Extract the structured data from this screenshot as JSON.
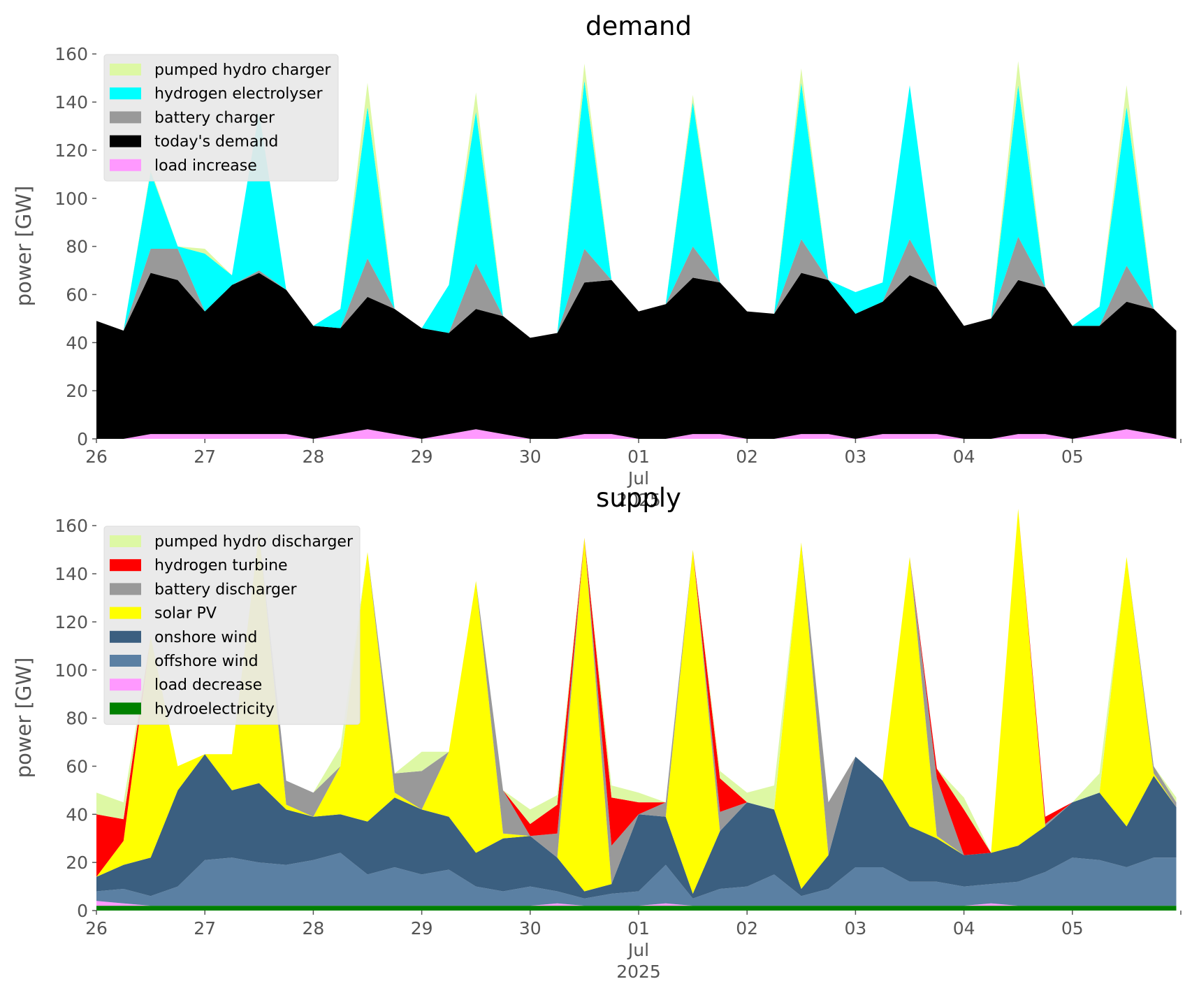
{
  "chart_data": [
    {
      "type": "area",
      "stacked": true,
      "title": "demand",
      "ylabel": "power [GW]",
      "xlabel": "",
      "ylim": [
        0,
        165
      ],
      "yticks": [
        0,
        20,
        40,
        60,
        80,
        100,
        120,
        140,
        160
      ],
      "xlim_days": [
        0,
        10
      ],
      "xticks": [
        "26",
        "27",
        "28",
        "29",
        "30",
        "01",
        "02",
        "03",
        "04",
        "05"
      ],
      "xtick_sub": {
        "tick": "01",
        "lines": [
          "Jul",
          "2025"
        ]
      },
      "grid": false,
      "legend_position": "top-left",
      "x": [
        "06-26 00:00",
        "06-26 06:00",
        "06-26 12:00",
        "06-26 18:00",
        "06-27 00:00",
        "06-27 06:00",
        "06-27 12:00",
        "06-27 18:00",
        "06-28 00:00",
        "06-28 06:00",
        "06-28 12:00",
        "06-28 18:00",
        "06-29 00:00",
        "06-29 06:00",
        "06-29 12:00",
        "06-29 18:00",
        "06-30 00:00",
        "06-30 06:00",
        "06-30 12:00",
        "06-30 18:00",
        "07-01 00:00",
        "07-01 06:00",
        "07-01 12:00",
        "07-01 18:00",
        "07-02 00:00",
        "07-02 06:00",
        "07-02 12:00",
        "07-02 18:00",
        "07-03 00:00",
        "07-03 06:00",
        "07-03 12:00",
        "07-03 18:00",
        "07-04 00:00",
        "07-04 06:00",
        "07-04 12:00",
        "07-04 18:00",
        "07-05 00:00",
        "07-05 06:00",
        "07-05 12:00",
        "07-05 18:00",
        "07-05 23:00"
      ],
      "series": [
        {
          "name": "load increase",
          "color": "#ff99ff",
          "values": [
            0,
            0,
            2,
            2,
            2,
            2,
            2,
            2,
            0,
            2,
            4,
            2,
            0,
            2,
            4,
            2,
            0,
            0,
            2,
            2,
            0,
            0,
            2,
            2,
            0,
            0,
            2,
            2,
            0,
            2,
            2,
            2,
            0,
            0,
            2,
            2,
            0,
            2,
            4,
            2,
            0
          ]
        },
        {
          "name": "today's demand",
          "color": "#000000",
          "values": [
            49,
            45,
            67,
            64,
            51,
            62,
            67,
            60,
            47,
            44,
            55,
            52,
            46,
            42,
            50,
            49,
            42,
            44,
            63,
            64,
            53,
            56,
            65,
            63,
            53,
            52,
            67,
            64,
            52,
            55,
            66,
            61,
            47,
            50,
            64,
            61,
            47,
            45,
            53,
            52,
            45
          ]
        },
        {
          "name": "battery charger",
          "color": "#999999",
          "values": [
            0,
            0,
            10,
            13,
            0,
            0,
            1,
            0,
            0,
            0,
            16,
            0,
            0,
            0,
            19,
            0,
            0,
            0,
            14,
            0,
            0,
            0,
            13,
            0,
            0,
            0,
            14,
            0,
            0,
            0,
            15,
            0,
            0,
            0,
            18,
            0,
            0,
            0,
            15,
            0,
            0
          ]
        },
        {
          "name": "hydrogen electrolyser",
          "color": "#00ffff",
          "values": [
            0,
            0,
            32,
            1,
            24,
            4,
            66,
            0,
            0,
            8,
            63,
            0,
            0,
            20,
            63,
            0,
            0,
            0,
            70,
            0,
            0,
            0,
            60,
            0,
            0,
            0,
            65,
            0,
            9,
            8,
            64,
            0,
            0,
            0,
            63,
            0,
            0,
            8,
            66,
            0,
            0
          ]
        },
        {
          "name": "pumped hydro charger",
          "color": "#ddf8a4",
          "values": [
            0,
            0,
            1,
            0,
            2,
            0,
            0,
            0,
            0,
            0,
            10,
            0,
            0,
            0,
            8,
            0,
            0,
            0,
            7,
            0,
            0,
            0,
            3,
            0,
            0,
            0,
            6,
            0,
            0,
            0,
            0,
            0,
            0,
            0,
            10,
            0,
            0,
            0,
            9,
            0,
            0
          ]
        }
      ],
      "legend_order": [
        "pumped hydro charger",
        "hydrogen electrolyser",
        "battery charger",
        "today's demand",
        "load increase"
      ]
    },
    {
      "type": "area",
      "stacked": true,
      "title": "supply",
      "ylabel": "power [GW]",
      "xlabel": "",
      "ylim": [
        0,
        165
      ],
      "yticks": [
        0,
        20,
        40,
        60,
        80,
        100,
        120,
        140,
        160
      ],
      "xlim_days": [
        0,
        10
      ],
      "xticks": [
        "26",
        "27",
        "28",
        "29",
        "30",
        "01",
        "02",
        "03",
        "04",
        "05"
      ],
      "xtick_sub": {
        "tick": "01",
        "lines": [
          "Jul",
          "2025"
        ]
      },
      "grid": false,
      "legend_position": "top-left",
      "x": [
        "06-26 00:00",
        "06-26 06:00",
        "06-26 12:00",
        "06-26 18:00",
        "06-27 00:00",
        "06-27 06:00",
        "06-27 12:00",
        "06-27 18:00",
        "06-28 00:00",
        "06-28 06:00",
        "06-28 12:00",
        "06-28 18:00",
        "06-29 00:00",
        "06-29 06:00",
        "06-29 12:00",
        "06-29 18:00",
        "06-30 00:00",
        "06-30 06:00",
        "06-30 12:00",
        "06-30 18:00",
        "07-01 00:00",
        "07-01 06:00",
        "07-01 12:00",
        "07-01 18:00",
        "07-02 00:00",
        "07-02 06:00",
        "07-02 12:00",
        "07-02 18:00",
        "07-03 00:00",
        "07-03 06:00",
        "07-03 12:00",
        "07-03 18:00",
        "07-04 00:00",
        "07-04 06:00",
        "07-04 12:00",
        "07-04 18:00",
        "07-05 00:00",
        "07-05 06:00",
        "07-05 12:00",
        "07-05 18:00",
        "07-05 23:00"
      ],
      "series": [
        {
          "name": "hydroelectricity",
          "color": "#008000",
          "values": [
            2,
            2,
            2,
            2,
            2,
            2,
            2,
            2,
            2,
            2,
            2,
            2,
            2,
            2,
            2,
            2,
            2,
            2,
            2,
            2,
            2,
            2,
            2,
            2,
            2,
            2,
            2,
            2,
            2,
            2,
            2,
            2,
            2,
            2,
            2,
            2,
            2,
            2,
            2,
            2,
            2
          ]
        },
        {
          "name": "load decrease",
          "color": "#ff99ff",
          "values": [
            2,
            1,
            0,
            0,
            0,
            0,
            0,
            0,
            0,
            0,
            0,
            0,
            0,
            0,
            0,
            0,
            0,
            1,
            0,
            0,
            0,
            1,
            0,
            0,
            0,
            0,
            0,
            0,
            0,
            0,
            0,
            0,
            0,
            1,
            0,
            0,
            0,
            0,
            0,
            0,
            0
          ]
        },
        {
          "name": "offshore wind",
          "color": "#5b80a3",
          "values": [
            4,
            6,
            4,
            8,
            19,
            20,
            18,
            17,
            19,
            22,
            13,
            16,
            13,
            15,
            8,
            6,
            8,
            5,
            3,
            5,
            6,
            16,
            3,
            7,
            8,
            13,
            4,
            7,
            16,
            16,
            10,
            10,
            8,
            8,
            10,
            14,
            20,
            19,
            16,
            20,
            20
          ]
        },
        {
          "name": "onshore wind",
          "color": "#3b5f80",
          "values": [
            6,
            10,
            16,
            40,
            44,
            28,
            33,
            23,
            18,
            16,
            22,
            29,
            27,
            22,
            14,
            22,
            21,
            14,
            3,
            4,
            32,
            20,
            2,
            24,
            35,
            27,
            3,
            14,
            46,
            36,
            23,
            18,
            13,
            13,
            15,
            19,
            23,
            28,
            17,
            34,
            21
          ]
        },
        {
          "name": "solar PV",
          "color": "#ffff00",
          "values": [
            0,
            10,
            92,
            10,
            0,
            15,
            104,
            2,
            0,
            20,
            112,
            2,
            0,
            27,
            113,
            2,
            0,
            0,
            147,
            0,
            0,
            0,
            143,
            0,
            0,
            0,
            144,
            0,
            0,
            0,
            112,
            1,
            0,
            0,
            140,
            0,
            0,
            0,
            112,
            1,
            0
          ]
        },
        {
          "name": "battery discharger",
          "color": "#999999",
          "values": [
            0,
            0,
            0,
            0,
            0,
            0,
            0,
            10,
            10,
            0,
            0,
            8,
            16,
            0,
            0,
            18,
            0,
            10,
            0,
            16,
            0,
            6,
            0,
            8,
            0,
            0,
            0,
            22,
            0,
            0,
            0,
            24,
            0,
            0,
            0,
            1,
            0,
            0,
            0,
            3,
            2
          ]
        },
        {
          "name": "hydrogen turbine",
          "color": "#ff0000",
          "values": [
            26,
            9,
            0,
            0,
            0,
            0,
            0,
            0,
            0,
            0,
            0,
            0,
            0,
            0,
            0,
            0,
            5,
            12,
            0,
            20,
            5,
            0,
            0,
            14,
            0,
            0,
            0,
            0,
            0,
            0,
            0,
            4,
            19,
            0,
            0,
            3,
            0,
            0,
            0,
            0,
            0
          ]
        },
        {
          "name": "pumped hydro discharger",
          "color": "#ddf8a4",
          "values": [
            9,
            7,
            0,
            0,
            0,
            0,
            0,
            0,
            0,
            8,
            0,
            0,
            8,
            0,
            0,
            0,
            6,
            4,
            0,
            5,
            4,
            0,
            0,
            3,
            4,
            10,
            0,
            0,
            0,
            0,
            0,
            0,
            5,
            0,
            0,
            0,
            0,
            8,
            0,
            0,
            2
          ]
        }
      ],
      "legend_order": [
        "pumped hydro discharger",
        "hydrogen turbine",
        "battery discharger",
        "solar PV",
        "onshore wind",
        "offshore wind",
        "load decrease",
        "hydroelectricity"
      ]
    }
  ]
}
